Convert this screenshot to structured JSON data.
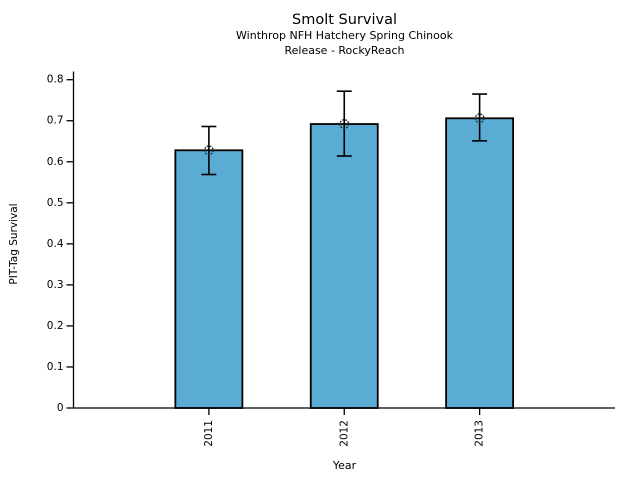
{
  "chart_data": {
    "type": "bar",
    "title": "Smolt Survival",
    "subtitle": [
      "Winthrop NFH Hatchery Spring Chinook",
      "Release - RockyReach"
    ],
    "categories": [
      "2011",
      "2012",
      "2013"
    ],
    "values": [
      0.628,
      0.692,
      0.706
    ],
    "error_low": [
      0.569,
      0.614,
      0.651
    ],
    "error_high": [
      0.686,
      0.772,
      0.765
    ],
    "xlabel": "Year",
    "ylabel": "PIT-Tag Survival",
    "ylim": [
      0,
      0.82
    ],
    "yticks": [
      0,
      0.1,
      0.2,
      0.3,
      0.4,
      0.5,
      0.6,
      0.7,
      0.8
    ],
    "ytick_labels": [
      "0",
      "0.1",
      "0.2",
      "0.3",
      "0.4",
      "0.5",
      "0.6",
      "0.7",
      "0.8"
    ],
    "xtick_rotation_deg": 90,
    "grid": false,
    "legend": null,
    "bar_color": "#5AACD5",
    "bar_edge_color": "#000000",
    "error_bar_color": "#000000",
    "marker": "open-circle",
    "marker_color": "#222222",
    "axis_color": "#000000",
    "background_color": "#FFFFFF"
  }
}
